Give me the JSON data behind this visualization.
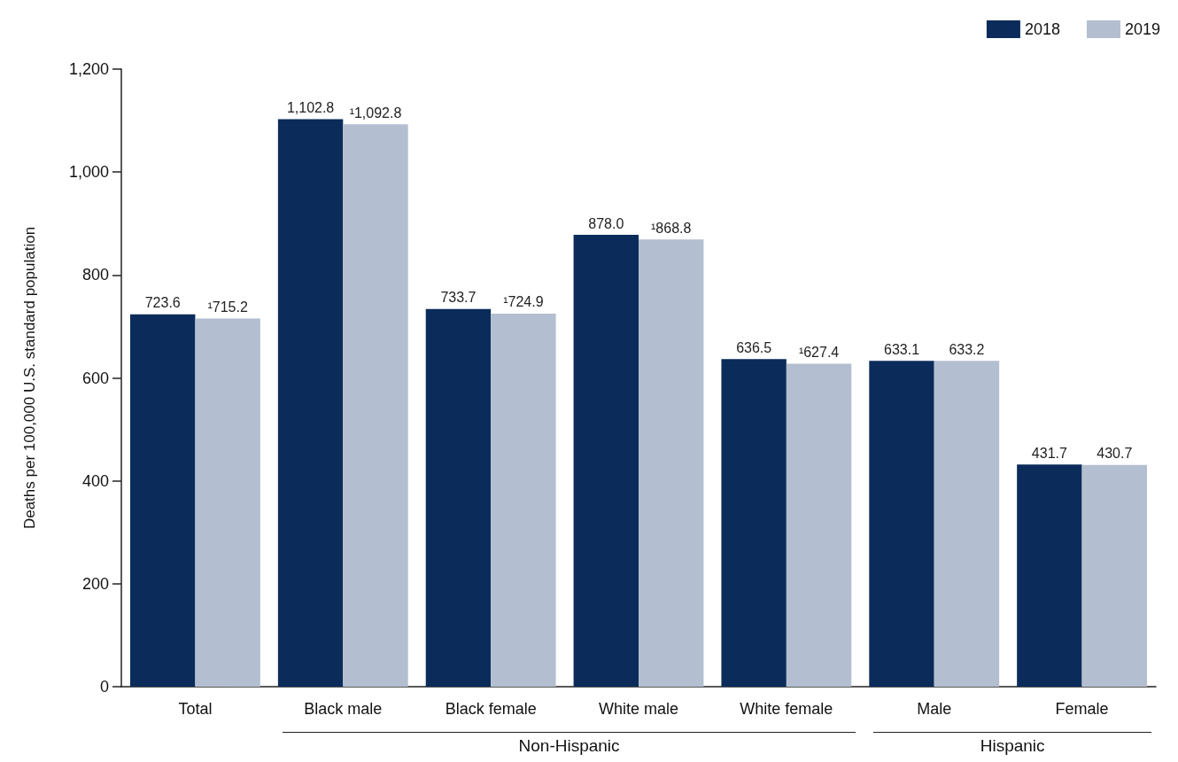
{
  "chart_data": {
    "type": "bar",
    "ylabel": "Deaths per 100,000 U.S. standard population",
    "categories": [
      "Total",
      "Black male",
      "Black female",
      "White male",
      "White female",
      "Male",
      "Female"
    ],
    "series": [
      {
        "name": "2018",
        "color": "#0b2c5a",
        "values": [
          723.6,
          1102.8,
          733.7,
          878.0,
          636.5,
          633.1,
          431.7
        ],
        "value_labels": [
          "723.6",
          "1,102.8",
          "733.7",
          "878.0",
          "636.5",
          "633.1",
          "431.7"
        ]
      },
      {
        "name": "2019",
        "color": "#b3bfd0",
        "values": [
          715.2,
          1092.8,
          724.9,
          868.8,
          627.4,
          633.2,
          430.7
        ],
        "value_labels": [
          "¹715.2",
          "¹1,092.8",
          "¹724.9",
          "¹868.8",
          "¹627.4",
          "633.2",
          "430.7"
        ]
      }
    ],
    "ylim": [
      0,
      1200
    ],
    "yticks": [
      0,
      200,
      400,
      600,
      800,
      {
        "value": 1000,
        "label": "1,000"
      },
      {
        "value": 1200,
        "label": "1,200"
      }
    ],
    "grid": false,
    "legend": "top right",
    "annotations": [
      "Non-Hispanic",
      "Hispanic"
    ]
  }
}
